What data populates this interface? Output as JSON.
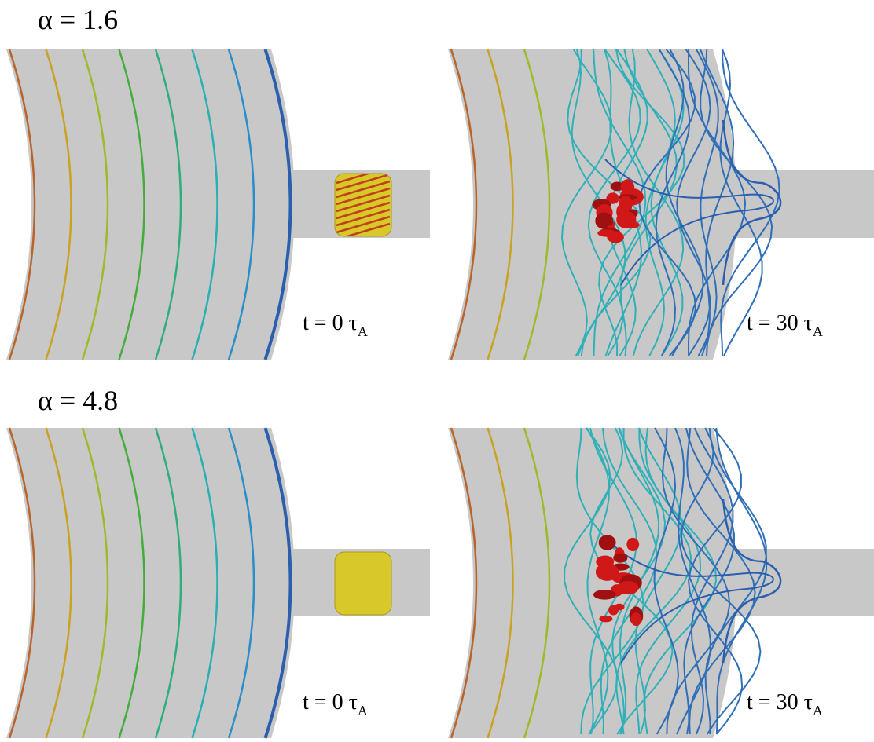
{
  "rows": [
    {
      "label": "α = 1.6",
      "panels": [
        {
          "time": "t = 0 τ",
          "time_sub": "A"
        },
        {
          "time": "t = 30 τ",
          "time_sub": "A"
        }
      ]
    },
    {
      "label": "α = 4.8",
      "panels": [
        {
          "time": "t = 0 τ",
          "time_sub": "A"
        },
        {
          "time": "t = 30 τ",
          "time_sub": "A"
        }
      ]
    }
  ]
}
